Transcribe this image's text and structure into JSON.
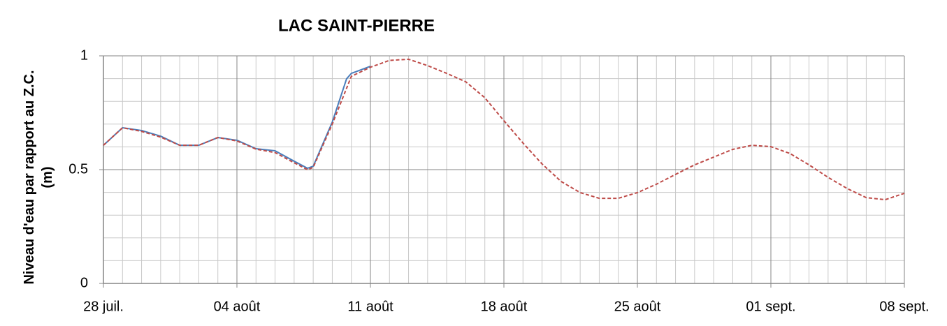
{
  "chart_data": {
    "type": "line",
    "title": "LAC SAINT-PIERRE",
    "ylabel": "Niveau d'eau par rapport au Z.C. (m)",
    "xlim": [
      0,
      42
    ],
    "xticks": [
      {
        "value": 0,
        "label": "28 juil."
      },
      {
        "value": 7,
        "label": "04 août"
      },
      {
        "value": 14,
        "label": "11 août"
      },
      {
        "value": 21,
        "label": "18 août"
      },
      {
        "value": 28,
        "label": "25 août"
      },
      {
        "value": 35,
        "label": "01 sept."
      },
      {
        "value": 42,
        "label": "08 sept."
      }
    ],
    "ylim": [
      0,
      1
    ],
    "yticks": [
      0,
      0.5,
      1
    ],
    "grid": true,
    "x_minor_step": 1,
    "y_minor_step": 0.1,
    "series": [
      {
        "color": "#4a7ebb",
        "dash": false,
        "x": [
          0,
          1,
          2,
          3,
          4,
          5,
          6,
          7,
          8,
          9,
          10,
          10.7,
          11,
          12,
          12.75,
          13,
          14
        ],
        "values": [
          0.607,
          0.684,
          0.672,
          0.647,
          0.607,
          0.607,
          0.641,
          0.629,
          0.592,
          0.583,
          0.537,
          0.506,
          0.515,
          0.709,
          0.899,
          0.923,
          0.954
        ]
      },
      {
        "color": "#be4b48",
        "dash": true,
        "x": [
          0,
          1,
          2,
          3,
          4,
          5,
          6,
          7,
          8,
          9,
          10,
          10.7,
          11,
          12,
          13,
          14,
          15,
          16,
          17,
          18,
          19,
          20,
          21,
          22,
          23,
          24,
          25,
          26,
          27,
          28,
          29,
          30,
          31,
          32,
          33,
          34,
          35,
          36,
          37,
          38,
          39,
          40,
          41,
          42
        ],
        "values": [
          0.607,
          0.684,
          0.668,
          0.643,
          0.607,
          0.607,
          0.641,
          0.626,
          0.59,
          0.575,
          0.53,
          0.5,
          0.51,
          0.7,
          0.91,
          0.95,
          0.98,
          0.985,
          0.957,
          0.923,
          0.886,
          0.816,
          0.715,
          0.617,
          0.525,
          0.448,
          0.399,
          0.374,
          0.374,
          0.399,
          0.436,
          0.479,
          0.521,
          0.555,
          0.589,
          0.607,
          0.601,
          0.571,
          0.521,
          0.466,
          0.417,
          0.377,
          0.368,
          0.396
        ]
      }
    ]
  }
}
